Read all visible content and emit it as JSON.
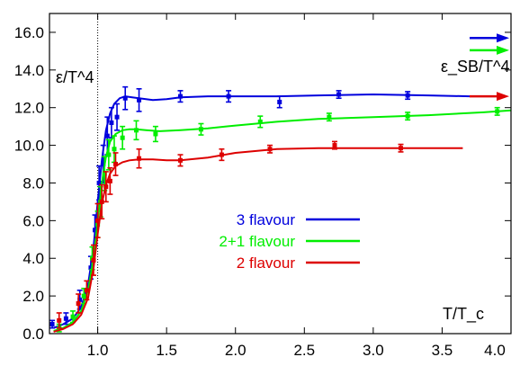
{
  "chart_data": {
    "type": "line",
    "title": "",
    "xlabel": "T/T_c",
    "ylabel": "ε/T^4",
    "sb_label": "ε_SB/T^4",
    "xlim": [
      0.65,
      4.0
    ],
    "ylim": [
      0.0,
      17.0
    ],
    "x_ticks": [
      1.0,
      1.5,
      2.0,
      2.5,
      3.0,
      3.5,
      4.0
    ],
    "x_tick_labels": [
      "1.0",
      "1.5",
      "2.0",
      "2.5",
      "3.0",
      "3.5",
      "4.0"
    ],
    "y_ticks": [
      0,
      2,
      4,
      6,
      8,
      10,
      12,
      14,
      16
    ],
    "y_tick_labels": [
      "0.0",
      "2.0",
      "4.0",
      "6.0",
      "8.0",
      "10.0",
      "12.0",
      "14.0",
      "16.0"
    ],
    "critical_line_x": 1.0,
    "grid": false,
    "legend_position": "center",
    "series": [
      {
        "name": "3 flavour",
        "color": "#0000dd",
        "sb_limit": 15.7,
        "curve": {
          "x": [
            0.68,
            0.75,
            0.82,
            0.88,
            0.93,
            0.97,
            1.0,
            1.03,
            1.06,
            1.09,
            1.12,
            1.16,
            1.2,
            1.25,
            1.3,
            1.4,
            1.5,
            1.6,
            1.8,
            2.0,
            2.3,
            2.6,
            3.0,
            3.4,
            3.7
          ],
          "y": [
            0.3,
            0.5,
            0.8,
            1.4,
            2.6,
            4.6,
            7.0,
            9.2,
            10.8,
            11.7,
            12.2,
            12.5,
            12.6,
            12.55,
            12.5,
            12.4,
            12.45,
            12.55,
            12.6,
            12.6,
            12.6,
            12.65,
            12.7,
            12.65,
            12.6
          ]
        },
        "points": {
          "x": [
            0.67,
            0.77,
            0.87,
            0.95,
            0.98,
            1.01,
            1.04,
            1.07,
            1.1,
            1.14,
            1.2,
            1.3,
            1.6,
            1.95,
            2.32,
            2.75,
            3.25
          ],
          "y": [
            0.5,
            0.8,
            1.8,
            3.5,
            5.5,
            8.0,
            9.0,
            10.5,
            11.2,
            11.5,
            12.5,
            12.4,
            12.6,
            12.6,
            12.3,
            12.7,
            12.65
          ],
          "err": [
            0.2,
            0.3,
            0.5,
            0.6,
            0.8,
            0.9,
            1.0,
            1.0,
            0.8,
            0.7,
            0.6,
            0.6,
            0.3,
            0.3,
            0.3,
            0.2,
            0.2
          ]
        }
      },
      {
        "name": "2+1 flavour",
        "color": "#00ee00",
        "sb_limit": 15.05,
        "curve": {
          "x": [
            0.68,
            0.75,
            0.82,
            0.88,
            0.93,
            0.97,
            1.0,
            1.03,
            1.06,
            1.09,
            1.13,
            1.18,
            1.23,
            1.28,
            1.35,
            1.45,
            1.6,
            1.8,
            2.0,
            2.3,
            2.6,
            3.0,
            3.4,
            3.8,
            4.0
          ],
          "y": [
            0.15,
            0.3,
            0.6,
            1.2,
            2.3,
            4.0,
            6.0,
            8.0,
            9.4,
            10.2,
            10.6,
            10.8,
            10.85,
            10.85,
            10.8,
            10.75,
            10.8,
            10.9,
            11.05,
            11.25,
            11.4,
            11.5,
            11.6,
            11.75,
            11.85
          ]
        },
        "points": {
          "x": [
            0.72,
            0.82,
            0.9,
            0.96,
            1.0,
            1.02,
            1.05,
            1.08,
            1.12,
            1.18,
            1.28,
            1.42,
            1.75,
            2.18,
            2.68,
            3.25,
            3.9
          ],
          "y": [
            0.3,
            0.9,
            2.0,
            4.0,
            5.8,
            7.0,
            8.5,
            9.5,
            9.8,
            10.4,
            10.8,
            10.6,
            10.85,
            11.25,
            11.5,
            11.55,
            11.8
          ],
          "err": [
            0.2,
            0.3,
            0.4,
            0.6,
            0.7,
            0.8,
            0.9,
            0.8,
            0.7,
            0.6,
            0.5,
            0.4,
            0.3,
            0.3,
            0.2,
            0.2,
            0.2
          ]
        }
      },
      {
        "name": "2 flavour",
        "color": "#dd0000",
        "sb_limit": 12.6,
        "curve": {
          "x": [
            0.68,
            0.75,
            0.82,
            0.88,
            0.93,
            0.97,
            1.0,
            1.03,
            1.06,
            1.09,
            1.13,
            1.18,
            1.23,
            1.3,
            1.4,
            1.5,
            1.6,
            1.8,
            2.0,
            2.3,
            2.6,
            3.0,
            3.4,
            3.65
          ],
          "y": [
            0.1,
            0.25,
            0.5,
            1.0,
            1.9,
            3.5,
            5.3,
            6.9,
            7.9,
            8.5,
            8.9,
            9.1,
            9.2,
            9.25,
            9.25,
            9.2,
            9.2,
            9.35,
            9.6,
            9.8,
            9.85,
            9.85,
            9.85,
            9.85
          ]
        },
        "points": {
          "x": [
            0.72,
            0.86,
            0.92,
            0.97,
            1.0,
            1.03,
            1.06,
            1.09,
            1.13,
            1.3,
            1.6,
            1.9,
            2.25,
            2.72,
            3.2
          ],
          "y": [
            0.7,
            1.6,
            2.3,
            3.9,
            6.0,
            7.0,
            7.8,
            8.1,
            9.0,
            9.3,
            9.2,
            9.5,
            9.8,
            10.0,
            9.85
          ],
          "err": [
            0.4,
            0.5,
            0.5,
            0.8,
            0.9,
            0.9,
            0.8,
            0.7,
            0.6,
            0.5,
            0.3,
            0.3,
            0.2,
            0.2,
            0.2
          ]
        }
      }
    ]
  }
}
